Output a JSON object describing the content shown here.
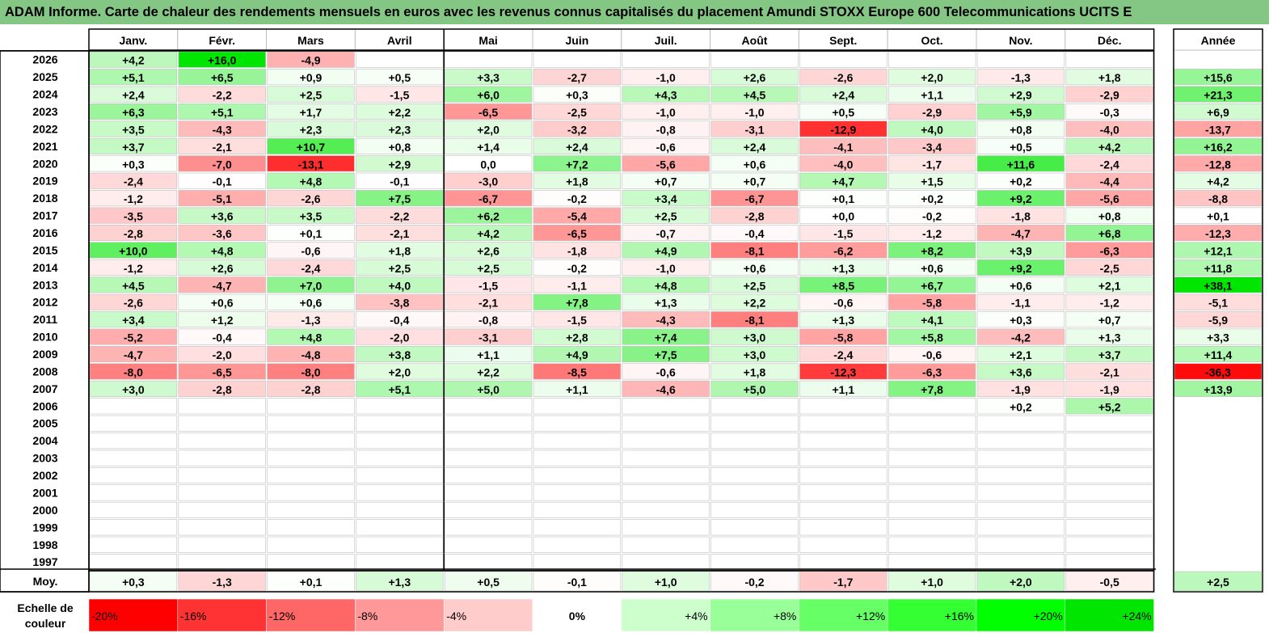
{
  "title": "ADAM Informe. Carte de chaleur des rendements mensuels en euros avec les revenus connus capitalisés du placement Amundi STOXX Europe 600 Telecommunications UCITS E",
  "chart_data": {
    "type": "heatmap",
    "months": [
      "Janv.",
      "Févr.",
      "Mars",
      "Avril",
      "Mai",
      "Juin",
      "Juil.",
      "Août",
      "Sept.",
      "Oct.",
      "Nov.",
      "Déc."
    ],
    "year_header": "Année",
    "rows": [
      {
        "year": "2026",
        "values": [
          "+4,2",
          "+16,0",
          "-4,9",
          null,
          null,
          null,
          null,
          null,
          null,
          null,
          null,
          null
        ],
        "annual": null
      },
      {
        "year": "2025",
        "values": [
          "+5,1",
          "+6,5",
          "+0,9",
          "+0,5",
          "+3,3",
          "-2,7",
          "-1,0",
          "+2,6",
          "-2,6",
          "+2,0",
          "-1,3",
          "+1,8"
        ],
        "annual": "+15,6"
      },
      {
        "year": "2024",
        "values": [
          "+2,4",
          "-2,2",
          "+2,5",
          "-1,5",
          "+6,0",
          "+0,3",
          "+4,3",
          "+4,5",
          "+2,4",
          "+1,1",
          "+2,9",
          "-2,9"
        ],
        "annual": "+21,3"
      },
      {
        "year": "2023",
        "values": [
          "+6,3",
          "+5,1",
          "+1,7",
          "+2,2",
          "-6,5",
          "-2,5",
          "-1,0",
          "-1,0",
          "+0,5",
          "-2,9",
          "+5,9",
          "-0,3"
        ],
        "annual": "+6,9"
      },
      {
        "year": "2022",
        "values": [
          "+3,5",
          "-4,3",
          "+2,3",
          "+2,3",
          "+2,0",
          "-3,2",
          "-0,8",
          "-3,1",
          "-12,9",
          "+4,0",
          "+0,8",
          "-4,0"
        ],
        "annual": "-13,7"
      },
      {
        "year": "2021",
        "values": [
          "+3,7",
          "-2,1",
          "+10,7",
          "+0,8",
          "+1,4",
          "+2,4",
          "-0,6",
          "+2,4",
          "-4,1",
          "-3,4",
          "+0,5",
          "+4,2"
        ],
        "annual": "+16,2"
      },
      {
        "year": "2020",
        "values": [
          "+0,3",
          "-7,0",
          "-13,1",
          "+2,9",
          "0,0",
          "+7,2",
          "-5,6",
          "+0,6",
          "-4,0",
          "-1,7",
          "+11,6",
          "-2,4"
        ],
        "annual": "-12,8"
      },
      {
        "year": "2019",
        "values": [
          "-2,4",
          "-0,1",
          "+4,8",
          "-0,1",
          "-3,0",
          "+1,8",
          "+0,7",
          "+0,7",
          "+4,7",
          "+1,5",
          "+0,2",
          "-4,4"
        ],
        "annual": "+4,2"
      },
      {
        "year": "2018",
        "values": [
          "-1,2",
          "-5,1",
          "-2,6",
          "+7,5",
          "-6,7",
          "-0,2",
          "+3,4",
          "-6,7",
          "+0,1",
          "+0,2",
          "+9,2",
          "-5,6"
        ],
        "annual": "-8,8"
      },
      {
        "year": "2017",
        "values": [
          "-3,5",
          "+3,6",
          "+3,5",
          "-2,2",
          "+6,2",
          "-5,4",
          "+2,5",
          "-2,8",
          "+0,0",
          "-0,2",
          "-1,8",
          "+0,8"
        ],
        "annual": "+0,1"
      },
      {
        "year": "2016",
        "values": [
          "-2,8",
          "-3,6",
          "+0,1",
          "-2,1",
          "+4,2",
          "-6,5",
          "-0,7",
          "-0,4",
          "-1,5",
          "-1,2",
          "-4,7",
          "+6,8"
        ],
        "annual": "-12,3"
      },
      {
        "year": "2015",
        "values": [
          "+10,0",
          "+4,8",
          "-0,6",
          "+1,8",
          "+2,6",
          "-1,8",
          "+4,9",
          "-8,1",
          "-6,2",
          "+8,2",
          "+3,9",
          "-6,3"
        ],
        "annual": "+12,1"
      },
      {
        "year": "2014",
        "values": [
          "-1,2",
          "+2,6",
          "-2,4",
          "+2,5",
          "+2,5",
          "-0,2",
          "-1,0",
          "+0,6",
          "+1,3",
          "+0,6",
          "+9,2",
          "-2,5"
        ],
        "annual": "+11,8"
      },
      {
        "year": "2013",
        "values": [
          "+4,5",
          "-4,7",
          "+7,0",
          "+4,0",
          "-1,5",
          "-1,1",
          "+4,8",
          "+2,5",
          "+8,5",
          "+6,7",
          "+0,6",
          "+2,1"
        ],
        "annual": "+38,1"
      },
      {
        "year": "2012",
        "values": [
          "-2,6",
          "+0,6",
          "+0,6",
          "-3,8",
          "-2,1",
          "+7,8",
          "+1,3",
          "+2,2",
          "-0,6",
          "-5,8",
          "-1,1",
          "-1,2"
        ],
        "annual": "-5,1"
      },
      {
        "year": "2011",
        "values": [
          "+3,4",
          "+1,2",
          "-1,3",
          "-0,4",
          "-0,8",
          "-1,5",
          "-4,3",
          "-8,1",
          "+1,3",
          "+4,1",
          "+0,3",
          "+0,7"
        ],
        "annual": "-5,9"
      },
      {
        "year": "2010",
        "values": [
          "-5,2",
          "-0,4",
          "+4,8",
          "-2,0",
          "-3,1",
          "+2,8",
          "+7,4",
          "+3,0",
          "-5,8",
          "+5,8",
          "-4,2",
          "+1,3"
        ],
        "annual": "+3,3"
      },
      {
        "year": "2009",
        "values": [
          "-4,7",
          "-2,0",
          "-4,8",
          "+3,8",
          "+1,1",
          "+4,9",
          "+7,5",
          "+3,0",
          "-2,4",
          "-0,6",
          "+2,1",
          "+3,7"
        ],
        "annual": "+11,4"
      },
      {
        "year": "2008",
        "values": [
          "-8,0",
          "-6,5",
          "-8,0",
          "+2,0",
          "+2,2",
          "-8,5",
          "-0,6",
          "+1,8",
          "-12,3",
          "-6,3",
          "+3,6",
          "-2,1"
        ],
        "annual": "-36,3"
      },
      {
        "year": "2007",
        "values": [
          "+3,0",
          "-2,8",
          "-2,8",
          "+5,1",
          "+5,0",
          "+1,1",
          "-4,6",
          "+5,0",
          "+1,1",
          "+7,8",
          "-1,9",
          "-1,9"
        ],
        "annual": "+13,9"
      },
      {
        "year": "2006",
        "values": [
          null,
          null,
          null,
          null,
          null,
          null,
          null,
          null,
          null,
          null,
          "+0,2",
          "+5,2"
        ],
        "annual": null
      },
      {
        "year": "2005",
        "values": [
          null,
          null,
          null,
          null,
          null,
          null,
          null,
          null,
          null,
          null,
          null,
          null
        ],
        "annual": null
      },
      {
        "year": "2004",
        "values": [
          null,
          null,
          null,
          null,
          null,
          null,
          null,
          null,
          null,
          null,
          null,
          null
        ],
        "annual": null
      },
      {
        "year": "2003",
        "values": [
          null,
          null,
          null,
          null,
          null,
          null,
          null,
          null,
          null,
          null,
          null,
          null
        ],
        "annual": null
      },
      {
        "year": "2002",
        "values": [
          null,
          null,
          null,
          null,
          null,
          null,
          null,
          null,
          null,
          null,
          null,
          null
        ],
        "annual": null
      },
      {
        "year": "2001",
        "values": [
          null,
          null,
          null,
          null,
          null,
          null,
          null,
          null,
          null,
          null,
          null,
          null
        ],
        "annual": null
      },
      {
        "year": "2000",
        "values": [
          null,
          null,
          null,
          null,
          null,
          null,
          null,
          null,
          null,
          null,
          null,
          null
        ],
        "annual": null
      },
      {
        "year": "1999",
        "values": [
          null,
          null,
          null,
          null,
          null,
          null,
          null,
          null,
          null,
          null,
          null,
          null
        ],
        "annual": null
      },
      {
        "year": "1998",
        "values": [
          null,
          null,
          null,
          null,
          null,
          null,
          null,
          null,
          null,
          null,
          null,
          null
        ],
        "annual": null
      },
      {
        "year": "1997",
        "values": [
          null,
          null,
          null,
          null,
          null,
          null,
          null,
          null,
          null,
          null,
          null,
          null
        ],
        "annual": null
      }
    ],
    "average": {
      "label": "Moy.",
      "values": [
        "+0,3",
        "-1,3",
        "+0,1",
        "+1,3",
        "+0,5",
        "-0,1",
        "+1,0",
        "-0,2",
        "-1,7",
        "+1,0",
        "+2,0",
        "-0,5"
      ],
      "annual": "+2,5"
    },
    "scale": {
      "label_line1": "Echelle de",
      "label_line2": "couleur",
      "steps": [
        {
          "label": "-20%",
          "value": -20,
          "color": "#ff0000"
        },
        {
          "label": "-16%",
          "value": -16,
          "color": "#ff3333"
        },
        {
          "label": "-12%",
          "value": -12,
          "color": "#ff6666"
        },
        {
          "label": "-8%",
          "value": -8,
          "color": "#ff9999"
        },
        {
          "label": "-4%",
          "value": -4,
          "color": "#ffcccc"
        },
        {
          "label": "0%",
          "value": 0,
          "color": "#ffffff"
        },
        {
          "label": "+4%",
          "value": 4,
          "color": "#ccffcc"
        },
        {
          "label": "+8%",
          "value": 8,
          "color": "#99ff99"
        },
        {
          "label": "+12%",
          "value": 12,
          "color": "#66ff66"
        },
        {
          "label": "+16%",
          "value": 16,
          "color": "#33ff33"
        },
        {
          "label": "+20%",
          "value": 20,
          "color": "#00ff00"
        },
        {
          "label": "+24%",
          "value": 24,
          "color": "#00e600"
        }
      ]
    }
  }
}
